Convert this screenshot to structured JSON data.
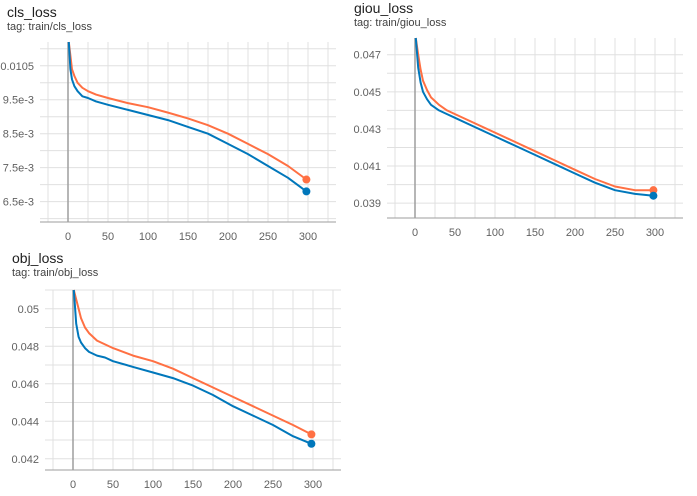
{
  "colors": {
    "series_raw": "#ff7043",
    "series_smooth": "#0077bb",
    "grid": "#e0e0e0",
    "axis": "#9e9e9e",
    "zero_line": "#9e9e9e"
  },
  "chart_data": [
    {
      "type": "line",
      "title": "cls_loss",
      "tag": "tag: train/cls_loss",
      "xlim": [
        -35,
        335
      ],
      "ylim": [
        0.0059,
        0.0112
      ],
      "x_ticks": [
        0,
        50,
        100,
        150,
        200,
        250,
        300
      ],
      "x_tick_labels": [
        "0",
        "50",
        "100",
        "150",
        "200",
        "250",
        "300"
      ],
      "y_ticks": [
        0.0065,
        0.0075,
        0.0085,
        0.0095,
        0.0105
      ],
      "y_tick_labels": [
        "6.5e-3",
        "7.5e-3",
        "8.5e-3",
        "9.5e-3",
        "0.0105"
      ],
      "series": [
        {
          "name": "orange",
          "color": "#ff7043",
          "x": [
            1,
            3,
            5,
            8,
            12,
            18,
            25,
            35,
            50,
            75,
            100,
            125,
            150,
            175,
            200,
            225,
            250,
            275,
            298
          ],
          "y": [
            0.0112,
            0.0108,
            0.0104,
            0.0102,
            0.01,
            0.00985,
            0.00975,
            0.00965,
            0.00955,
            0.0094,
            0.00928,
            0.00912,
            0.00895,
            0.00875,
            0.0085,
            0.0082,
            0.0079,
            0.00755,
            0.00715
          ]
        },
        {
          "name": "blue",
          "color": "#0077bb",
          "x": [
            1,
            3,
            5,
            8,
            12,
            18,
            25,
            35,
            50,
            75,
            100,
            125,
            150,
            175,
            200,
            225,
            250,
            275,
            298
          ],
          "y": [
            0.0112,
            0.0104,
            0.0101,
            0.0099,
            0.00975,
            0.0096,
            0.00955,
            0.00945,
            0.00935,
            0.0092,
            0.00905,
            0.0089,
            0.0087,
            0.0085,
            0.0082,
            0.0079,
            0.00755,
            0.0072,
            0.0068
          ]
        }
      ]
    },
    {
      "type": "line",
      "title": "giou_loss",
      "tag": "tag: train/giou_loss",
      "xlim": [
        -35,
        335
      ],
      "ylim": [
        0.0382,
        0.0479
      ],
      "x_ticks": [
        0,
        50,
        100,
        150,
        200,
        250,
        300
      ],
      "x_tick_labels": [
        "0",
        "50",
        "100",
        "150",
        "200",
        "250",
        "300"
      ],
      "y_ticks": [
        0.039,
        0.041,
        0.043,
        0.045,
        0.047
      ],
      "y_tick_labels": [
        "0.039",
        "0.041",
        "0.043",
        "0.045",
        "0.047"
      ],
      "series": [
        {
          "name": "orange",
          "color": "#ff7043",
          "x": [
            1,
            4,
            7,
            10,
            15,
            20,
            30,
            40,
            50,
            75,
            100,
            125,
            150,
            175,
            200,
            225,
            250,
            275,
            298
          ],
          "y": [
            0.0479,
            0.047,
            0.0462,
            0.0456,
            0.0451,
            0.0447,
            0.0443,
            0.044,
            0.0438,
            0.0433,
            0.0428,
            0.0423,
            0.0418,
            0.0413,
            0.0408,
            0.0403,
            0.0399,
            0.0397,
            0.0397
          ]
        },
        {
          "name": "blue",
          "color": "#0077bb",
          "x": [
            1,
            4,
            7,
            10,
            15,
            20,
            30,
            40,
            50,
            75,
            100,
            125,
            150,
            175,
            200,
            225,
            250,
            275,
            298
          ],
          "y": [
            0.0479,
            0.0463,
            0.0455,
            0.045,
            0.0446,
            0.0443,
            0.044,
            0.0438,
            0.0436,
            0.0431,
            0.0426,
            0.0421,
            0.0416,
            0.0411,
            0.0406,
            0.0401,
            0.0397,
            0.0395,
            0.0394
          ]
        }
      ]
    },
    {
      "type": "line",
      "title": "obj_loss",
      "tag": "tag: train/obj_loss",
      "xlim": [
        -35,
        335
      ],
      "ylim": [
        0.0414,
        0.051
      ],
      "x_ticks": [
        0,
        50,
        100,
        150,
        200,
        250,
        300
      ],
      "x_tick_labels": [
        "0",
        "50",
        "100",
        "150",
        "200",
        "250",
        "300"
      ],
      "y_ticks": [
        0.042,
        0.044,
        0.046,
        0.048,
        0.05
      ],
      "y_tick_labels": [
        "0.042",
        "0.044",
        "0.046",
        "0.048",
        "0.05"
      ],
      "series": [
        {
          "name": "orange",
          "color": "#ff7043",
          "x": [
            1,
            4,
            7,
            10,
            15,
            20,
            30,
            40,
            50,
            75,
            100,
            125,
            150,
            175,
            200,
            225,
            250,
            275,
            298
          ],
          "y": [
            0.051,
            0.0505,
            0.05,
            0.0495,
            0.049,
            0.0487,
            0.0483,
            0.0481,
            0.0479,
            0.0475,
            0.0472,
            0.0468,
            0.0463,
            0.0458,
            0.0453,
            0.0448,
            0.0443,
            0.0438,
            0.0433
          ]
        },
        {
          "name": "blue",
          "color": "#0077bb",
          "x": [
            1,
            4,
            7,
            10,
            15,
            20,
            30,
            40,
            50,
            75,
            100,
            125,
            150,
            175,
            200,
            225,
            250,
            275,
            298
          ],
          "y": [
            0.051,
            0.0492,
            0.0485,
            0.0482,
            0.0479,
            0.0477,
            0.0475,
            0.0474,
            0.0472,
            0.0469,
            0.0466,
            0.0463,
            0.0459,
            0.0454,
            0.0448,
            0.0443,
            0.0438,
            0.0432,
            0.0428
          ]
        }
      ]
    }
  ]
}
